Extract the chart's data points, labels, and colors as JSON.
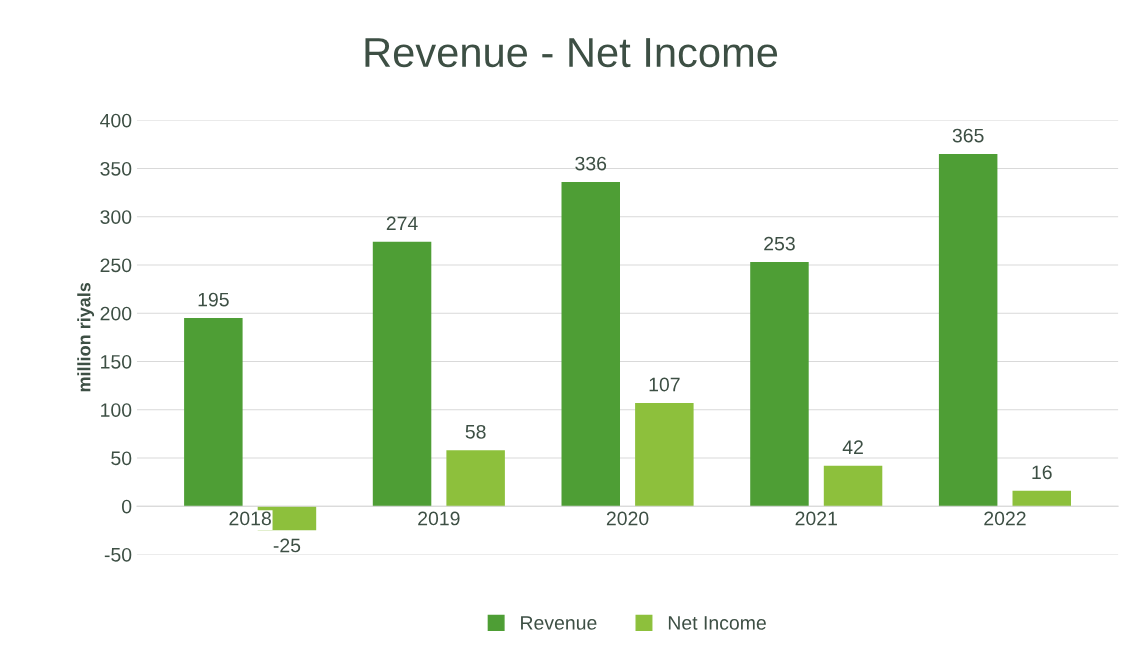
{
  "chart_data": {
    "type": "bar",
    "title": "Revenue - Net Income",
    "ylabel": "million riyals",
    "categories": [
      "2018",
      "2019",
      "2020",
      "2021",
      "2022"
    ],
    "series": [
      {
        "name": "Revenue",
        "color": "#4e9e35",
        "values": [
          195,
          274,
          336,
          253,
          365
        ]
      },
      {
        "name": "Net Income",
        "color": "#8dc03c",
        "values": [
          -25,
          58,
          107,
          42,
          16
        ]
      }
    ],
    "ylim": [
      -50,
      400
    ],
    "yticks": [
      -50,
      0,
      50,
      100,
      150,
      200,
      250,
      300,
      350,
      400
    ],
    "grid": "y",
    "legend": "bottom",
    "data_labels": true
  }
}
